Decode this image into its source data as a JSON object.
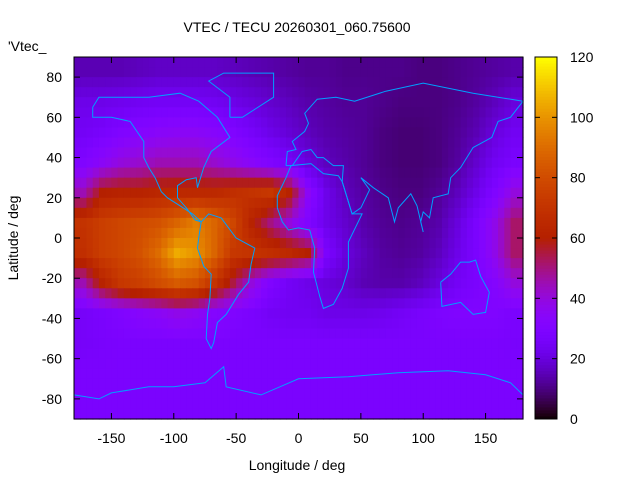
{
  "chart_data": {
    "type": "heatmap",
    "title": "VTEC / TECU 20260301_060.75600",
    "key_label": "'Vtec_",
    "xlabel": "Longitude / deg",
    "ylabel": "Latitude / deg",
    "xlim": [
      -180,
      180
    ],
    "ylim": [
      -90,
      90
    ],
    "clim": [
      0,
      120
    ],
    "xticks": [
      "-150",
      "-100",
      "-50",
      "0",
      "50",
      "100",
      "150"
    ],
    "xtick_values": [
      -150,
      -100,
      -50,
      0,
      50,
      100,
      150
    ],
    "yticks": [
      "-80",
      "-60",
      "-40",
      "-20",
      "0",
      "20",
      "40",
      "60",
      "80"
    ],
    "ytick_values": [
      -80,
      -60,
      -40,
      -20,
      0,
      20,
      40,
      60,
      80
    ],
    "cbticks": [
      "0",
      "20",
      "40",
      "60",
      "80",
      "100",
      "120"
    ],
    "cbtick_values": [
      0,
      20,
      40,
      60,
      80,
      100,
      120
    ],
    "colormap": "gnuplot pm3d (black-purple-red-orange-yellow)",
    "coastline_color": "#00a0ff",
    "grid_lon": [
      -172.5,
      -157.5,
      -142.5,
      -127.5,
      -112.5,
      -97.5,
      -82.5,
      -67.5,
      -52.5,
      -37.5,
      -22.5,
      -7.5,
      7.5,
      22.5,
      37.5,
      52.5,
      67.5,
      82.5,
      97.5,
      112.5,
      127.5,
      142.5,
      157.5,
      172.5
    ],
    "grid_lat": [
      82.5,
      67.5,
      52.5,
      37.5,
      22.5,
      7.5,
      -7.5,
      -22.5,
      -37.5,
      -52.5,
      -67.5,
      -82.5
    ],
    "values": [
      [
        15,
        15,
        15,
        16,
        17,
        17,
        17,
        17,
        16,
        15,
        14,
        13,
        12,
        12,
        11,
        11,
        11,
        11,
        10,
        10,
        11,
        12,
        13,
        14
      ],
      [
        22,
        22,
        23,
        24,
        25,
        25,
        25,
        24,
        22,
        20,
        18,
        16,
        14,
        13,
        12,
        12,
        11,
        10,
        10,
        10,
        11,
        13,
        16,
        20
      ],
      [
        25,
        27,
        30,
        32,
        34,
        35,
        35,
        33,
        30,
        26,
        22,
        19,
        16,
        14,
        13,
        12,
        10,
        9,
        9,
        10,
        12,
        15,
        20,
        24
      ],
      [
        30,
        35,
        40,
        42,
        45,
        45,
        45,
        42,
        38,
        34,
        30,
        26,
        20,
        16,
        14,
        12,
        10,
        9,
        9,
        10,
        13,
        18,
        24,
        28
      ],
      [
        45,
        60,
        62,
        62,
        64,
        65,
        65,
        65,
        68,
        70,
        72,
        62,
        35,
        22,
        16,
        13,
        11,
        10,
        10,
        12,
        16,
        22,
        30,
        40
      ],
      [
        70,
        75,
        78,
        80,
        82,
        88,
        95,
        88,
        78,
        62,
        50,
        40,
        30,
        22,
        18,
        14,
        12,
        11,
        12,
        14,
        20,
        28,
        38,
        52
      ],
      [
        68,
        75,
        78,
        82,
        90,
        105,
        100,
        88,
        72,
        70,
        68,
        65,
        60,
        28,
        20,
        16,
        13,
        12,
        13,
        16,
        22,
        28,
        38,
        52
      ],
      [
        45,
        62,
        72,
        75,
        80,
        85,
        82,
        70,
        55,
        40,
        30,
        25,
        22,
        20,
        18,
        15,
        14,
        14,
        16,
        20,
        25,
        28,
        32,
        40
      ],
      [
        26,
        28,
        30,
        33,
        35,
        38,
        36,
        32,
        30,
        28,
        25,
        24,
        24,
        22,
        22,
        22,
        23,
        25,
        27,
        29,
        30,
        30,
        30,
        28
      ],
      [
        26,
        27,
        28,
        28,
        28,
        28,
        28,
        28,
        28,
        28,
        28,
        28,
        28,
        28,
        28,
        28,
        28,
        28,
        28,
        28,
        28,
        28,
        28,
        27
      ],
      [
        28,
        28,
        28,
        28,
        28,
        28,
        28,
        28,
        28,
        28,
        28,
        28,
        28,
        28,
        28,
        28,
        28,
        28,
        28,
        28,
        28,
        28,
        28,
        28
      ],
      [
        28,
        28,
        28,
        28,
        28,
        28,
        28,
        28,
        28,
        28,
        28,
        28,
        28,
        28,
        28,
        28,
        28,
        28,
        28,
        28,
        28,
        28,
        28,
        28
      ]
    ]
  }
}
